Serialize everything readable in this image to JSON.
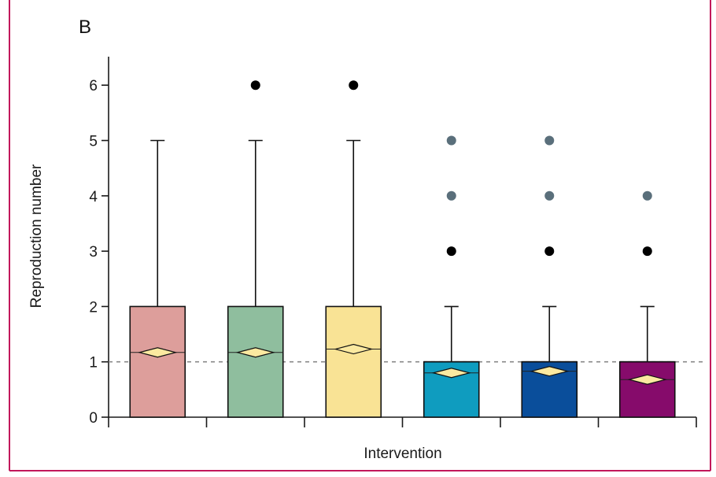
{
  "panel_label": "B",
  "chart_data": {
    "type": "box",
    "ylabel": "Reproduction number",
    "xlabel": "Intervention",
    "ylim": [
      0,
      6.5
    ],
    "yticks": [
      0,
      1,
      2,
      3,
      4,
      5,
      6
    ],
    "reference_line": 1,
    "series": [
      {
        "min": 0,
        "q1": 0,
        "median": null,
        "q3": 2,
        "max": 5,
        "mean": 1.17,
        "color": "#dd9e9b",
        "outliers": []
      },
      {
        "min": 0,
        "q1": 0,
        "median": null,
        "q3": 2,
        "max": 5,
        "mean": 1.17,
        "color": "#8fbe9e",
        "outliers": [
          {
            "y": 6,
            "color": "#000000"
          }
        ]
      },
      {
        "min": 0,
        "q1": 0,
        "median": null,
        "q3": 2,
        "max": 5,
        "mean": 1.23,
        "color": "#f9e395",
        "outliers": [
          {
            "y": 6,
            "color": "#000000"
          }
        ]
      },
      {
        "min": 0,
        "q1": 0,
        "median": 1,
        "q3": 1,
        "max": 2,
        "mean": 0.8,
        "color": "#0f9cbf",
        "outliers": [
          {
            "y": 3,
            "color": "#000000"
          },
          {
            "y": 4,
            "color": "#5a6f7b"
          },
          {
            "y": 5,
            "color": "#5a6f7b"
          }
        ]
      },
      {
        "min": 0,
        "q1": 0,
        "median": 1,
        "q3": 1,
        "max": 2,
        "mean": 0.83,
        "color": "#0a4e9b",
        "outliers": [
          {
            "y": 3,
            "color": "#000000"
          },
          {
            "y": 4,
            "color": "#5a6f7b"
          },
          {
            "y": 5,
            "color": "#5a6f7b"
          }
        ]
      },
      {
        "min": 0,
        "q1": 0,
        "median": 1,
        "q3": 1,
        "max": 2,
        "mean": 0.68,
        "color": "#860b6b",
        "outliers": [
          {
            "y": 3,
            "color": "#000000"
          },
          {
            "y": 4,
            "color": "#5a6f7b"
          }
        ]
      }
    ]
  }
}
